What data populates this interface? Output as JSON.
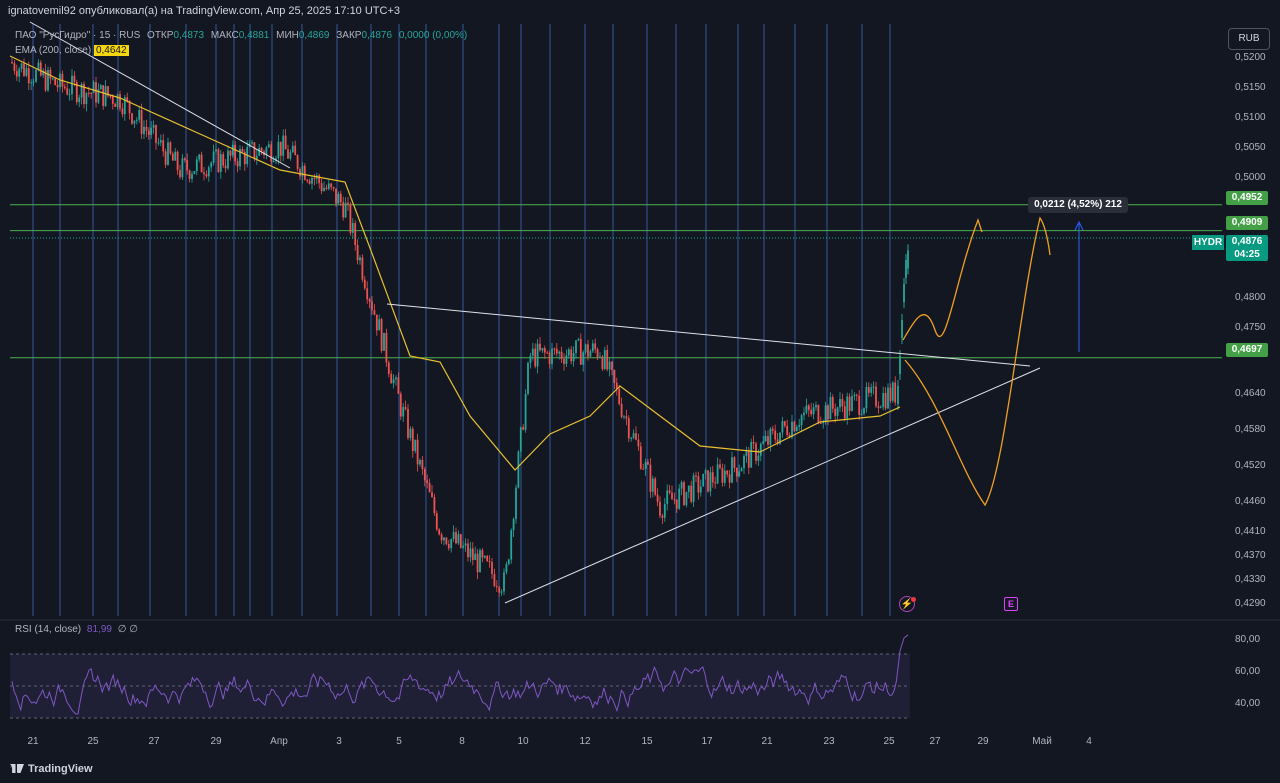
{
  "header": {
    "title": "ignatovemil92 опубликовал(а) на TradingView.com, Апр 25, 2025 17:10 UTC+3"
  },
  "legend": {
    "symbol": "ПАО \"РусГидро\" · 15 · RUS",
    "open_label": "ОТКР",
    "open": "0,4873",
    "high_label": "МАКС",
    "high": "0,4881",
    "low_label": "МИН",
    "low": "0,4869",
    "close_label": "ЗАКР",
    "close": "0,4876",
    "change": "0,0000 (0,00%)",
    "ema_label": "EMA (200, close)",
    "ema_value": "0,4642"
  },
  "currency_button": "RUB",
  "price_axis": {
    "ticks": [
      "0,5200",
      "0,5150",
      "0,5100",
      "0,5050",
      "0,5000",
      "0,4800",
      "0,4750",
      "0,4640",
      "0,4580",
      "0,4520",
      "0,4460",
      "0,4410",
      "0,4370",
      "0,4330",
      "0,4290"
    ]
  },
  "level_labels": {
    "l1": "0,4952",
    "l2": "0,4909",
    "l3": "0,4697"
  },
  "current": {
    "ticker": "HYDR",
    "price": "0,4876",
    "countdown": "04:25"
  },
  "measure_label": "0,0212 (4,52%) 212",
  "rsi": {
    "label": "RSI (14, close)",
    "value": "81,99",
    "extra": "∅ ∅",
    "ticks": [
      "80,00",
      "60,00",
      "40,00"
    ]
  },
  "time_axis": {
    "labels": [
      "21",
      "25",
      "27",
      "29",
      "Апр",
      "3",
      "5",
      "8",
      "10",
      "12",
      "15",
      "17",
      "21",
      "23",
      "25",
      "27",
      "29",
      "Май",
      "4"
    ]
  },
  "footer": {
    "brand": "TradingView"
  },
  "colors": {
    "background": "#131722",
    "up": "#26a69a",
    "down": "#ef5350",
    "ema": "#e8c02f",
    "forecast": "#f0a020",
    "levels": "#4caf50",
    "vlines": "#3a5fa8",
    "rsi": "#7e57c2"
  },
  "chart_data": {
    "type": "line",
    "title": "ПАО \"РусГидро\" · 15 · RUS",
    "x": [
      "21",
      "25",
      "27",
      "29",
      "Апр",
      "3",
      "5",
      "8",
      "10",
      "12",
      "15",
      "17",
      "21",
      "23",
      "25"
    ],
    "series": [
      {
        "name": "ПАО \"РусГидро\" · 15 · RUS",
        "values": [
          0.518,
          0.512,
          0.508,
          0.5,
          0.503,
          0.495,
          0.463,
          0.442,
          0.46,
          0.469,
          0.45,
          0.456,
          0.456,
          0.462,
          0.4876
        ]
      },
      {
        "name": "EMA (200, close)",
        "values": [
          0.5195,
          0.515,
          0.512,
          0.505,
          0.501,
          0.496,
          0.468,
          0.459,
          0.453,
          0.462,
          0.458,
          0.456,
          0.456,
          0.46,
          0.4642
        ]
      }
    ],
    "levels": [
      0.4952,
      0.4909,
      0.4697
    ],
    "ylim": [
      0.427,
      0.523
    ],
    "rsi_last": 81.99,
    "rsi_levels": [
      70,
      50,
      30
    ]
  }
}
